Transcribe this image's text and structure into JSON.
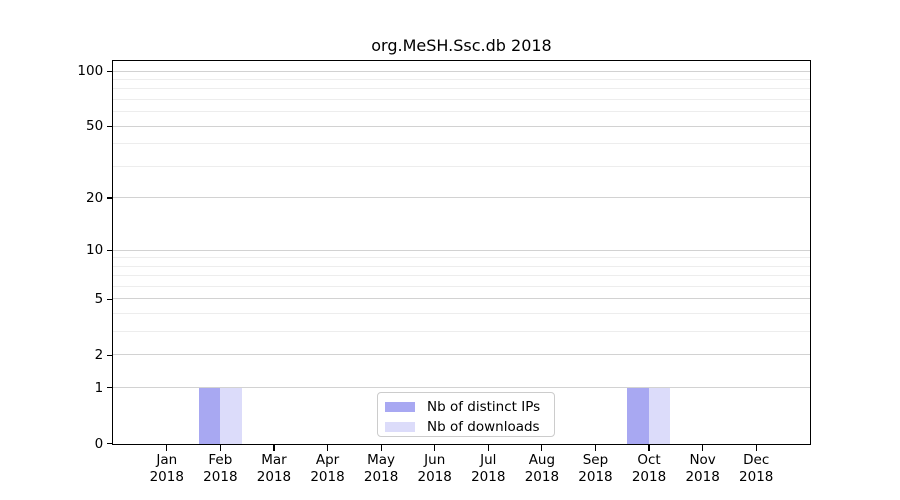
{
  "title": "org.MeSH.Ssc.db 2018",
  "colors": {
    "distinct_ips": "#a8a8f2",
    "downloads": "#dcdcfa",
    "grid_major": "#d2d2d2",
    "grid_minor": "#ededed",
    "axis": "#000000",
    "text": "#000000",
    "legend_border": "#cccccc"
  },
  "legend": {
    "items": [
      {
        "label": "Nb of distinct IPs",
        "color_key": "distinct_ips"
      },
      {
        "label": "Nb of downloads",
        "color_key": "downloads"
      }
    ]
  },
  "x_axis": {
    "months": [
      "Jan",
      "Feb",
      "Mar",
      "Apr",
      "May",
      "Jun",
      "Jul",
      "Aug",
      "Sep",
      "Oct",
      "Nov",
      "Dec"
    ],
    "year": "2018"
  },
  "y_axis": {
    "tick_values": [
      0,
      1,
      2,
      5,
      10,
      20,
      50,
      100
    ],
    "minor_gridline_values": [
      3,
      4,
      6,
      7,
      8,
      9,
      30,
      40,
      60,
      70,
      80,
      90
    ],
    "scale": "log1p"
  },
  "chart_data": {
    "type": "bar",
    "title": "org.MeSH.Ssc.db 2018",
    "categories": [
      "Jan 2018",
      "Feb 2018",
      "Mar 2018",
      "Apr 2018",
      "May 2018",
      "Jun 2018",
      "Jul 2018",
      "Aug 2018",
      "Sep 2018",
      "Oct 2018",
      "Nov 2018",
      "Dec 2018"
    ],
    "series": [
      {
        "name": "Nb of distinct IPs",
        "values": [
          0,
          1,
          0,
          0,
          0,
          0,
          0,
          0,
          0,
          1,
          0,
          0
        ]
      },
      {
        "name": "Nb of downloads",
        "values": [
          0,
          1,
          0,
          0,
          0,
          0,
          0,
          0,
          0,
          1,
          0,
          0
        ]
      }
    ],
    "xlabel": "",
    "ylabel": "",
    "yscale": "log1p",
    "y_ticks": [
      0,
      1,
      2,
      5,
      10,
      20,
      50,
      100
    ],
    "ylim": [
      0,
      113
    ],
    "grid": "horizontal-only",
    "legend_position": "lower center"
  }
}
